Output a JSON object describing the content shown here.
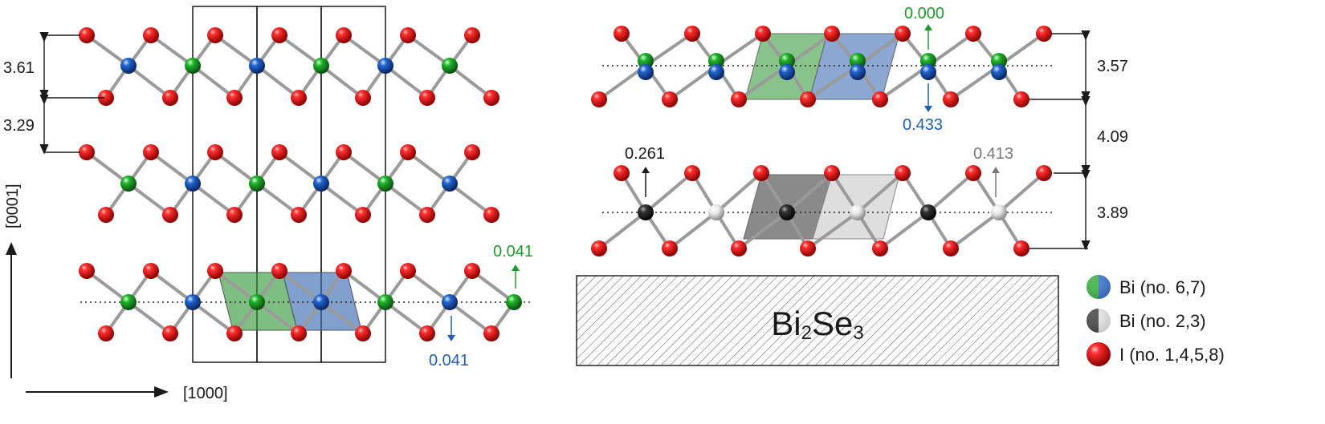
{
  "left_panel": {
    "spacing_labels": [
      "3.61",
      "3.29"
    ],
    "disp_up": "0.041",
    "disp_down": "0.041",
    "axis_vertical": "[0001]",
    "axis_horizontal": "[1000]"
  },
  "right_panel": {
    "top_disp_up": "0.000",
    "top_disp_down": "0.433",
    "bot_disp_left": "0.261",
    "bot_disp_right": "0.413",
    "spacing_labels": [
      "3.57",
      "4.09",
      "3.89"
    ],
    "substrate_label": "Bi",
    "substrate_sub1": "2",
    "substrate_mid": "Se",
    "substrate_sub2": "3"
  },
  "legend": {
    "items": [
      {
        "label": "Bi (no. 6,7)",
        "icon": "green-blue-sphere"
      },
      {
        "label": "Bi (no. 2,3)",
        "icon": "black-white-sphere"
      },
      {
        "label": "I (no. 1,4,5,8)",
        "icon": "red-sphere"
      }
    ]
  },
  "colors": {
    "iodine": "#e01a1a",
    "bi_green": "#1fa52a",
    "bi_blue": "#1f5fc4",
    "bi_black": "#202020",
    "bi_white": "#e8e8e8",
    "green_label": "#1f9a2a",
    "blue_label": "#1f5fb0",
    "grey_label": "#7a7a7a"
  }
}
